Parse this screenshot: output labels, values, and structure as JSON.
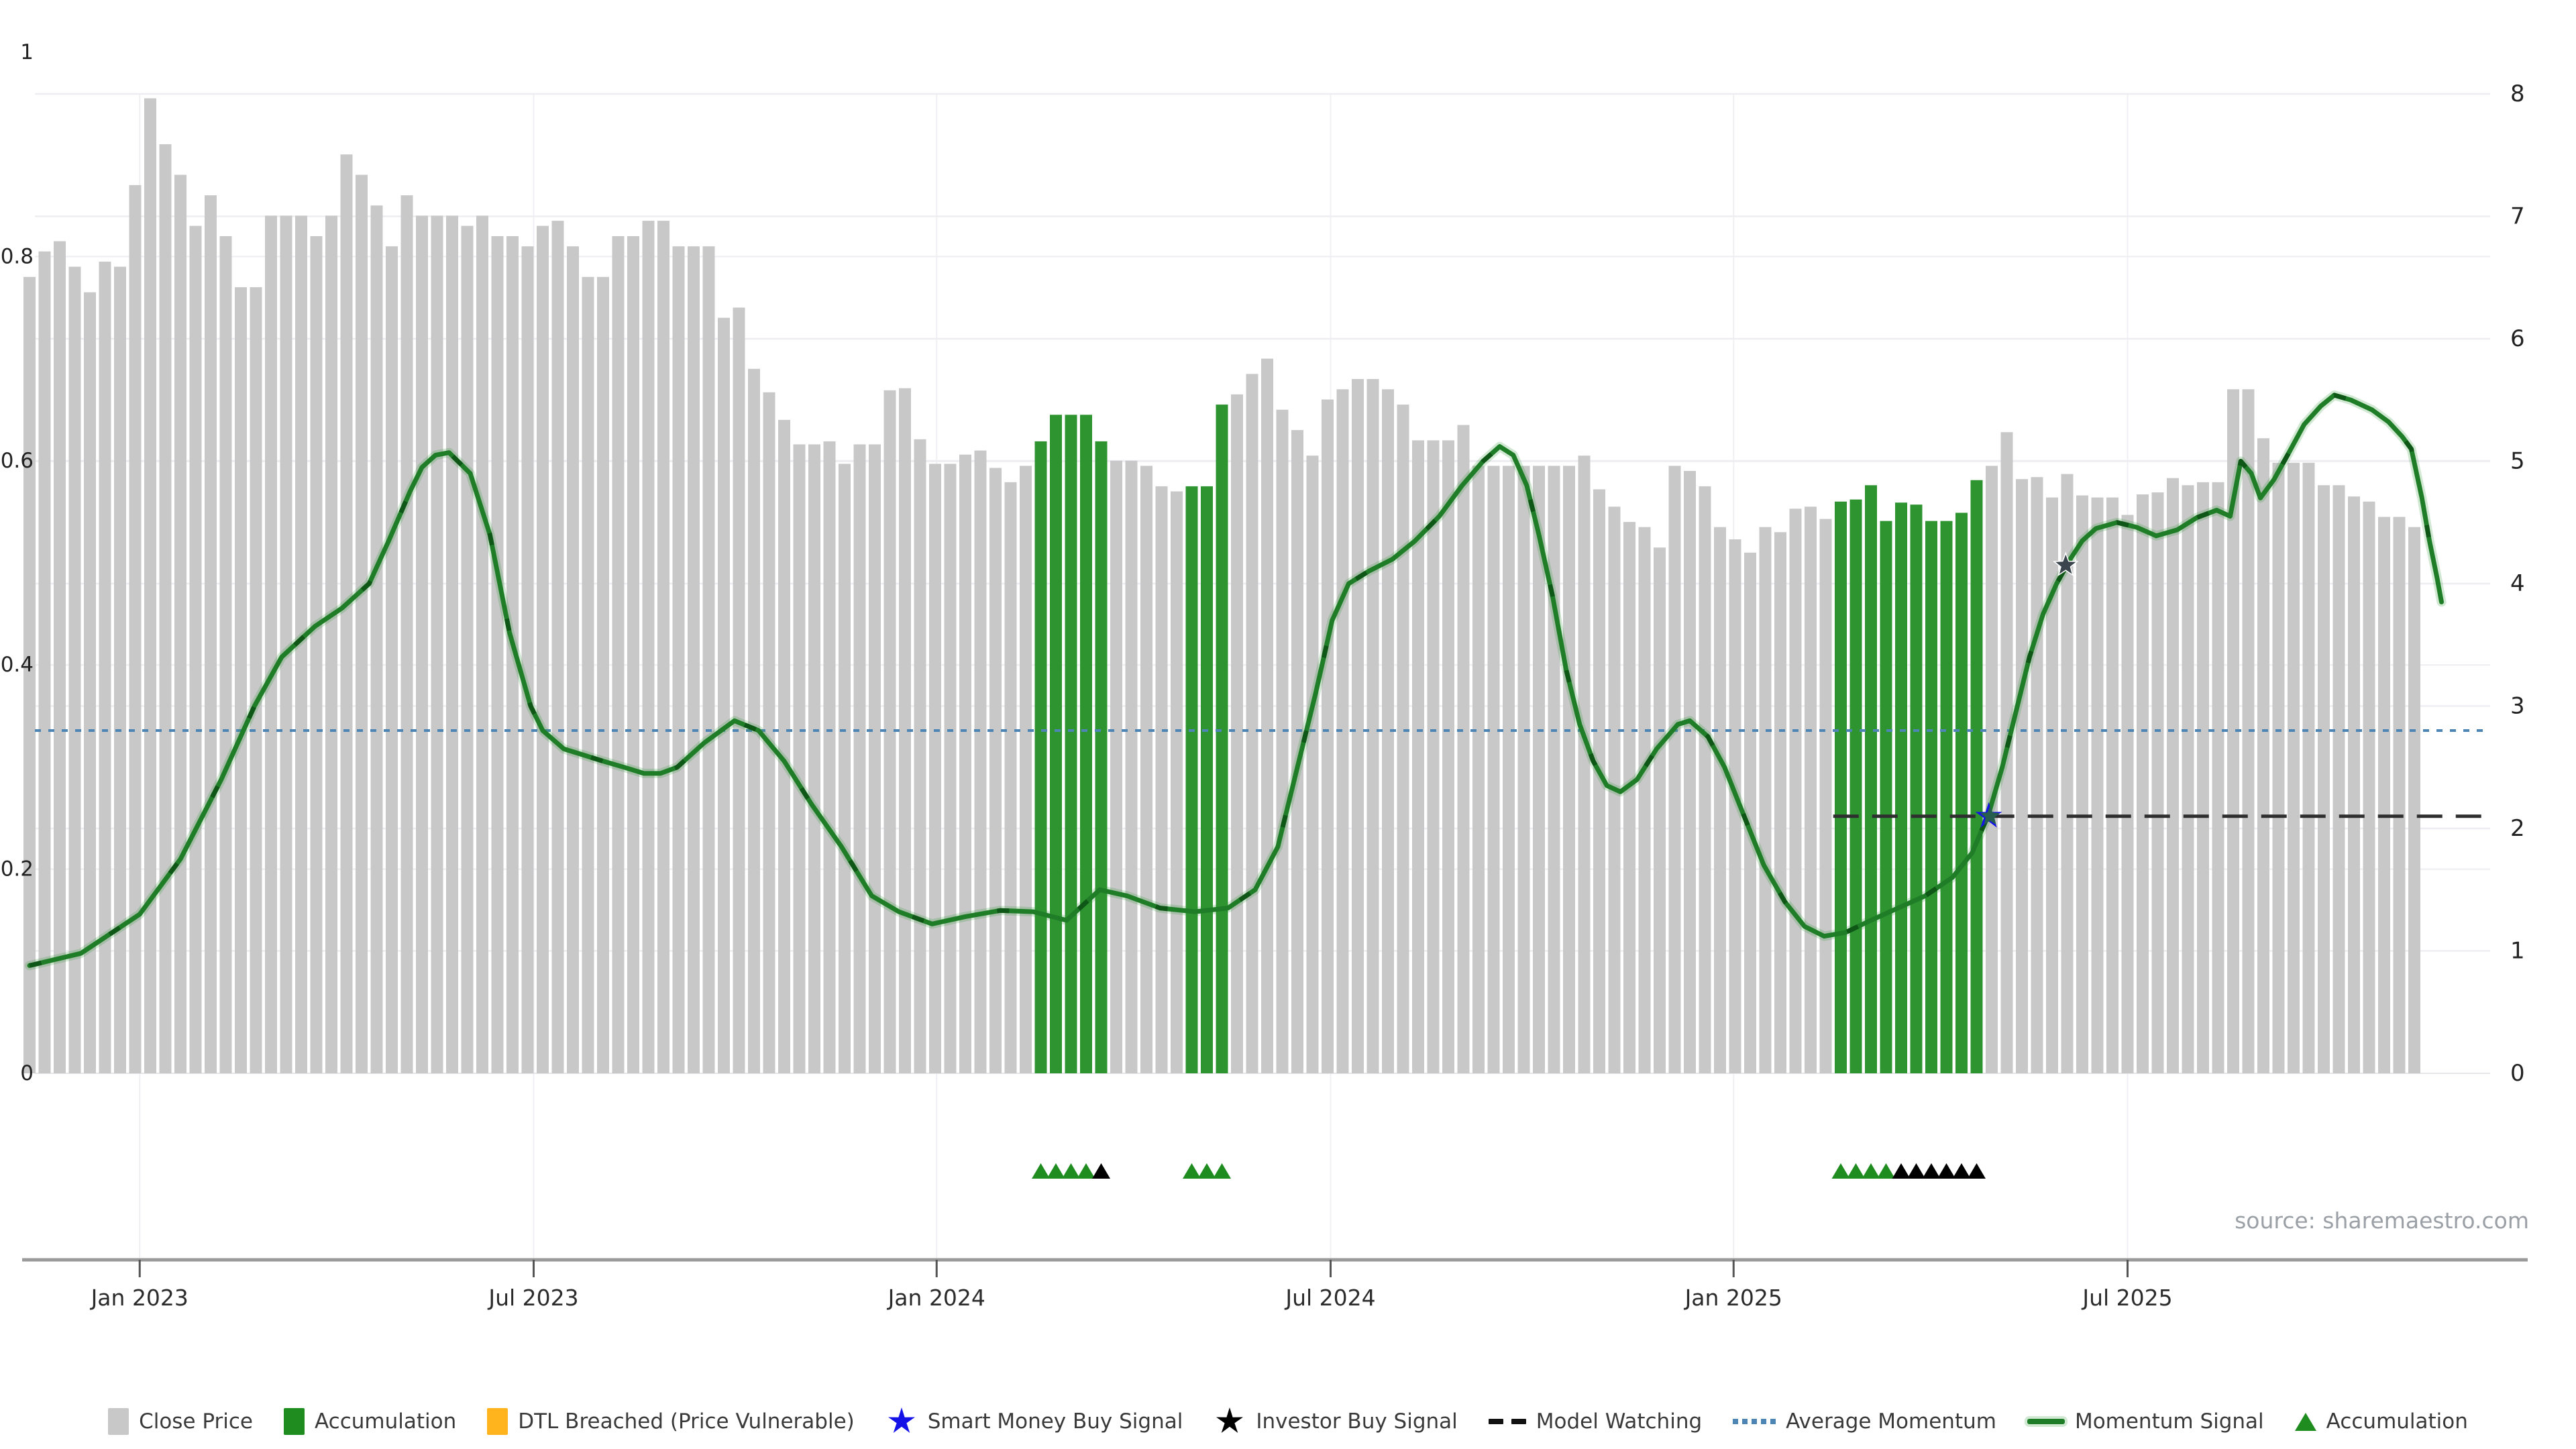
{
  "source_note": "source: sharemaestro.com",
  "colors": {
    "close_price_bar": "#c8c8c8",
    "accumulation_bar": "#2e9430",
    "momentum_line": "#1f7d28",
    "momentum_line_dash": "#0c5314",
    "momentum_halo": "rgba(46,148,48,0.22)",
    "average_momentum_line": "#4d86b4",
    "model_watching_line": "#2e2e2e",
    "smart_money_star": "#1512e8",
    "smart_money_overlay_star": "#275f4e",
    "investor_star_chart": "#3a454d",
    "grid_line": "#ededf2",
    "axis_line": "#9a9a9a",
    "tick_text": "#2b2b2b",
    "triangle_green": "#1e8c1e",
    "triangle_black": "#000000"
  },
  "chart_data": {
    "type": "bar",
    "subtype": "combo-bar-line",
    "title": "",
    "xlabel": "",
    "ylabel_left": "",
    "ylabel_right": "",
    "grid": true,
    "legend_position": "bottom",
    "x_axis": {
      "tick_labels": [
        "Jan 2023",
        "Jul 2023",
        "Jan 2024",
        "Jul 2024",
        "Jan 2025",
        "Jul 2025"
      ],
      "tick_indices": [
        7.3,
        33.4,
        60.1,
        86.2,
        112.9,
        139.0
      ]
    },
    "left_axis": {
      "range": [
        0,
        1
      ],
      "ticks": [
        0,
        0.2,
        0.4,
        0.6,
        0.8,
        1
      ]
    },
    "right_axis": {
      "range": [
        0,
        8
      ],
      "ticks": [
        0,
        1,
        2,
        3,
        4,
        5,
        6,
        7,
        8
      ]
    },
    "series": [
      {
        "name": "Close Price",
        "type": "bar",
        "axis": "left"
      },
      {
        "name": "Accumulation",
        "type": "bar",
        "axis": "left"
      },
      {
        "name": "Momentum Signal",
        "type": "line",
        "axis": "right"
      },
      {
        "name": "Average Momentum",
        "type": "hline",
        "axis": "right"
      },
      {
        "name": "Model Watching",
        "type": "hline-segment",
        "axis": "right"
      }
    ],
    "close_price_values": [
      0.78,
      0.805,
      0.815,
      0.79,
      0.765,
      0.795,
      0.79,
      0.87,
      0.955,
      0.91,
      0.88,
      0.83,
      0.86,
      0.82,
      0.77,
      0.77,
      0.84,
      0.84,
      0.84,
      0.82,
      0.84,
      0.9,
      0.88,
      0.85,
      0.81,
      0.86,
      0.84,
      0.84,
      0.84,
      0.83,
      0.84,
      0.82,
      0.82,
      0.81,
      0.83,
      0.835,
      0.81,
      0.78,
      0.78,
      0.82,
      0.82,
      0.835,
      0.835,
      0.81,
      0.81,
      0.81,
      0.74,
      0.75,
      0.69,
      0.667,
      0.64,
      0.616,
      0.616,
      0.619,
      0.597,
      0.616,
      0.616,
      0.669,
      0.671,
      0.621,
      0.597,
      0.597,
      0.606,
      0.61,
      0.593,
      0.579,
      0.595,
      0.619,
      0.645,
      0.645,
      0.645,
      0.619,
      0.6,
      0.6,
      0.595,
      0.575,
      0.57,
      0.575,
      0.575,
      0.655,
      0.665,
      0.685,
      0.7,
      0.65,
      0.63,
      0.605,
      0.66,
      0.67,
      0.68,
      0.68,
      0.67,
      0.655,
      0.62,
      0.62,
      0.62,
      0.635,
      0.595,
      0.595,
      0.595,
      0.595,
      0.595,
      0.595,
      0.595,
      0.605,
      0.572,
      0.555,
      0.54,
      0.535,
      0.515,
      0.595,
      0.59,
      0.575,
      0.535,
      0.523,
      0.51,
      0.535,
      0.53,
      0.553,
      0.555,
      0.543,
      0.56,
      0.562,
      0.576,
      0.541,
      0.559,
      0.557,
      0.541,
      0.541,
      0.549,
      0.581,
      0.595,
      0.628,
      0.582,
      0.584,
      0.564,
      0.587,
      0.566,
      0.564,
      0.564,
      0.547,
      0.567,
      0.569,
      0.583,
      0.576,
      0.579,
      0.579,
      0.67,
      0.67,
      0.622,
      0.598,
      0.598,
      0.598,
      0.576,
      0.576,
      0.565,
      0.56,
      0.545,
      0.545,
      0.535
    ],
    "accumulation_bar_indices": [
      67,
      68,
      69,
      70,
      71,
      77,
      78,
      79,
      120,
      121,
      122,
      123,
      124,
      125,
      126,
      127,
      128,
      129
    ],
    "momentum_signal_points": [
      [
        0.0,
        0.88
      ],
      [
        3.4,
        0.98
      ],
      [
        7.3,
        1.3
      ],
      [
        10.0,
        1.75
      ],
      [
        12.7,
        2.4
      ],
      [
        14.9,
        3.0
      ],
      [
        16.7,
        3.4
      ],
      [
        18.9,
        3.65
      ],
      [
        20.7,
        3.8
      ],
      [
        22.5,
        4.0
      ],
      [
        23.8,
        4.35
      ],
      [
        25.2,
        4.75
      ],
      [
        26.0,
        4.95
      ],
      [
        26.9,
        5.05
      ],
      [
        27.8,
        5.07
      ],
      [
        29.2,
        4.9
      ],
      [
        30.5,
        4.4
      ],
      [
        31.8,
        3.6
      ],
      [
        33.2,
        3.0
      ],
      [
        34.0,
        2.8
      ],
      [
        35.4,
        2.65
      ],
      [
        36.7,
        2.6
      ],
      [
        38.0,
        2.55
      ],
      [
        39.4,
        2.5
      ],
      [
        40.7,
        2.45
      ],
      [
        41.8,
        2.45
      ],
      [
        42.9,
        2.5
      ],
      [
        44.7,
        2.7
      ],
      [
        46.7,
        2.88
      ],
      [
        48.3,
        2.8
      ],
      [
        50.0,
        2.55
      ],
      [
        51.8,
        2.2
      ],
      [
        53.8,
        1.85
      ],
      [
        55.8,
        1.45
      ],
      [
        57.6,
        1.32
      ],
      [
        59.8,
        1.22
      ],
      [
        62.0,
        1.28
      ],
      [
        64.3,
        1.33
      ],
      [
        66.5,
        1.32
      ],
      [
        68.7,
        1.25
      ],
      [
        70.9,
        1.5
      ],
      [
        72.7,
        1.45
      ],
      [
        74.9,
        1.35
      ],
      [
        77.2,
        1.32
      ],
      [
        79.4,
        1.35
      ],
      [
        81.2,
        1.5
      ],
      [
        82.7,
        1.85
      ],
      [
        84.0,
        2.5
      ],
      [
        85.2,
        3.1
      ],
      [
        86.3,
        3.7
      ],
      [
        87.4,
        4.0
      ],
      [
        88.7,
        4.1
      ],
      [
        90.3,
        4.2
      ],
      [
        91.8,
        4.35
      ],
      [
        93.4,
        4.55
      ],
      [
        94.9,
        4.8
      ],
      [
        96.3,
        5.0
      ],
      [
        97.4,
        5.12
      ],
      [
        98.3,
        5.05
      ],
      [
        99.2,
        4.8
      ],
      [
        100.0,
        4.4
      ],
      [
        100.9,
        3.9
      ],
      [
        101.8,
        3.3
      ],
      [
        102.7,
        2.85
      ],
      [
        103.6,
        2.55
      ],
      [
        104.5,
        2.35
      ],
      [
        105.4,
        2.3
      ],
      [
        106.5,
        2.4
      ],
      [
        107.8,
        2.65
      ],
      [
        109.2,
        2.85
      ],
      [
        110.0,
        2.88
      ],
      [
        111.2,
        2.75
      ],
      [
        112.3,
        2.5
      ],
      [
        113.6,
        2.1
      ],
      [
        114.9,
        1.7
      ],
      [
        116.3,
        1.4
      ],
      [
        117.6,
        1.2
      ],
      [
        118.9,
        1.12
      ],
      [
        120.3,
        1.15
      ],
      [
        122.0,
        1.25
      ],
      [
        123.8,
        1.35
      ],
      [
        125.6,
        1.45
      ],
      [
        127.4,
        1.6
      ],
      [
        128.7,
        1.8
      ],
      [
        129.8,
        2.12
      ],
      [
        130.7,
        2.5
      ],
      [
        131.6,
        2.95
      ],
      [
        132.5,
        3.4
      ],
      [
        133.4,
        3.75
      ],
      [
        134.3,
        4.0
      ],
      [
        135.2,
        4.2
      ],
      [
        136.0,
        4.35
      ],
      [
        136.9,
        4.45
      ],
      [
        138.3,
        4.5
      ],
      [
        139.6,
        4.46
      ],
      [
        140.9,
        4.39
      ],
      [
        142.3,
        4.44
      ],
      [
        143.6,
        4.54
      ],
      [
        144.9,
        4.6
      ],
      [
        145.8,
        4.55
      ],
      [
        146.5,
        5.0
      ],
      [
        147.2,
        4.9
      ],
      [
        147.8,
        4.7
      ],
      [
        148.7,
        4.85
      ],
      [
        149.6,
        5.05
      ],
      [
        150.7,
        5.3
      ],
      [
        151.8,
        5.45
      ],
      [
        152.7,
        5.54
      ],
      [
        153.8,
        5.5
      ],
      [
        155.2,
        5.42
      ],
      [
        156.3,
        5.32
      ],
      [
        157.2,
        5.2
      ],
      [
        157.8,
        5.1
      ],
      [
        158.5,
        4.7
      ],
      [
        159.0,
        4.35
      ],
      [
        159.5,
        4.05
      ],
      [
        159.8,
        3.85
      ]
    ],
    "average_momentum_level": 2.8,
    "model_watching": {
      "level": 2.1,
      "start_index": 119.5,
      "end_index": 163.0
    },
    "signals": {
      "smart_money_buy": {
        "index": 129.8,
        "value": 2.1
      },
      "investor_buy": {
        "index": 134.9,
        "value": 4.15
      }
    },
    "accumulation_markers": {
      "green_indices": [
        67,
        68,
        69,
        70,
        77,
        78,
        79,
        120,
        121,
        122,
        123
      ],
      "black_indices": [
        71,
        124,
        125,
        126,
        127,
        128,
        129
      ]
    }
  },
  "legend": {
    "items": [
      {
        "type": "square",
        "color": "#c8c8c8",
        "label": "Close Price"
      },
      {
        "type": "square",
        "color": "#1e8c1e",
        "label": "Accumulation"
      },
      {
        "type": "square",
        "color": "#ffb41e",
        "label": "DTL Breached (Price Vulnerable)"
      },
      {
        "type": "star",
        "color": "#1512e8",
        "label": "Smart Money Buy Signal"
      },
      {
        "type": "star",
        "color": "#000000",
        "label": "Investor Buy Signal"
      },
      {
        "type": "dash",
        "color": "#111111",
        "label": "Model Watching"
      },
      {
        "type": "dots",
        "color": "#4d86b4",
        "label": "Average Momentum"
      },
      {
        "type": "line",
        "color": "#1f7d28",
        "label": "Momentum Signal"
      },
      {
        "type": "triangle",
        "color": "#1e8c1e",
        "label": "Accumulation"
      }
    ]
  }
}
